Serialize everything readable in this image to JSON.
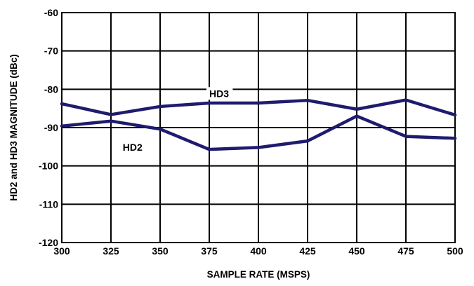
{
  "chart_data": {
    "type": "line",
    "xlabel": "SAMPLE RATE (MSPS)",
    "ylabel": "HD2 and HD3 MAGNITUDE (dBc)",
    "x": [
      300,
      325,
      350,
      375,
      400,
      425,
      450,
      475,
      500
    ],
    "xlim": [
      300,
      500
    ],
    "ylim": [
      -120,
      -60
    ],
    "xticks": [
      "300",
      "325",
      "350",
      "375",
      "400",
      "425",
      "450",
      "475",
      "500"
    ],
    "yticks": [
      "-60",
      "-70",
      "-80",
      "-90",
      "-100",
      "-110",
      "-120"
    ],
    "grid": true,
    "legend": "none",
    "series": [
      {
        "name": "HD3",
        "values": [
          -83.8,
          -86.6,
          -84.5,
          -83.6,
          -83.6,
          -82.9,
          -85.2,
          -82.8,
          -86.7
        ],
        "label_at": [
          375,
          -82
        ]
      },
      {
        "name": "HD2",
        "values": [
          -89.6,
          -88.3,
          -90.4,
          -95.7,
          -95.2,
          -93.5,
          -87.0,
          -92.3,
          -92.8
        ],
        "label_at": [
          331,
          -96
        ]
      }
    ],
    "line_color": "#1f1b6e"
  }
}
